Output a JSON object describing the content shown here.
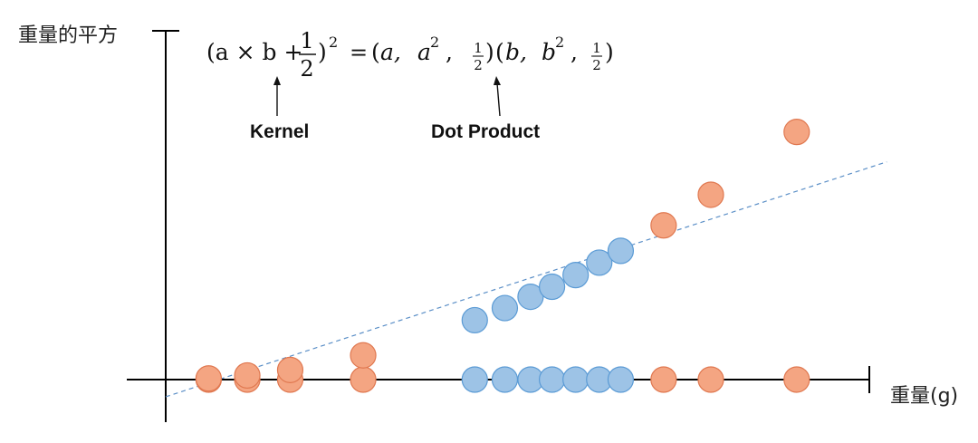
{
  "labels": {
    "y_axis": "重量的平方",
    "x_axis": "重量(g)",
    "kernel": "Kernel",
    "dot_product": "Dot Product"
  },
  "formula": {
    "lhs_open": "(a × b + ",
    "lhs_frac_num": "1",
    "lhs_frac_den": "2",
    "lhs_close": ")",
    "lhs_exp": "2",
    "equals": "=",
    "v1_open": "(",
    "v1_a": "a,",
    "v1_a2_base": "a",
    "v1_a2_exp": "2",
    "v1_comma": ",",
    "v1_frac_num": "1",
    "v1_frac_den": "2",
    "v1_close": ")",
    "v2_open": "(",
    "v2_b": "b,",
    "v2_b2_base": "b",
    "v2_b2_exp": "2",
    "v2_comma": ",",
    "v2_frac_num": "1",
    "v2_frac_den": "2",
    "v2_close": ")"
  },
  "colors": {
    "orange_fill": "#f4a582",
    "orange_stroke": "#e07850",
    "blue_fill": "#9dc3e6",
    "blue_stroke": "#5b9bd5",
    "divider": "#5b8fc7",
    "axis": "#000000"
  },
  "points": {
    "orange_1d": [
      1,
      1.9,
      2.9,
      4.6,
      11.6,
      12.7,
      14.7
    ],
    "blue_1d": [
      7.2,
      7.9,
      8.5,
      9.0,
      9.55,
      10.1,
      10.6
    ],
    "orange_2d": [
      [
        1,
        1
      ],
      [
        1.9,
        3.61
      ],
      [
        2.9,
        8.41
      ],
      [
        4.6,
        21.16
      ],
      [
        11.6,
        134.56
      ],
      [
        12.7,
        161.29
      ],
      [
        14.7,
        216.09
      ]
    ],
    "blue_2d": [
      [
        7.2,
        51.84
      ],
      [
        7.9,
        62.41
      ],
      [
        8.5,
        72.25
      ],
      [
        9.0,
        81
      ],
      [
        9.55,
        91.2
      ],
      [
        10.1,
        102.01
      ],
      [
        10.6,
        112.36
      ]
    ]
  },
  "divider_line": {
    "from": [
      0,
      -15
    ],
    "to": [
      16.8,
      190
    ]
  }
}
